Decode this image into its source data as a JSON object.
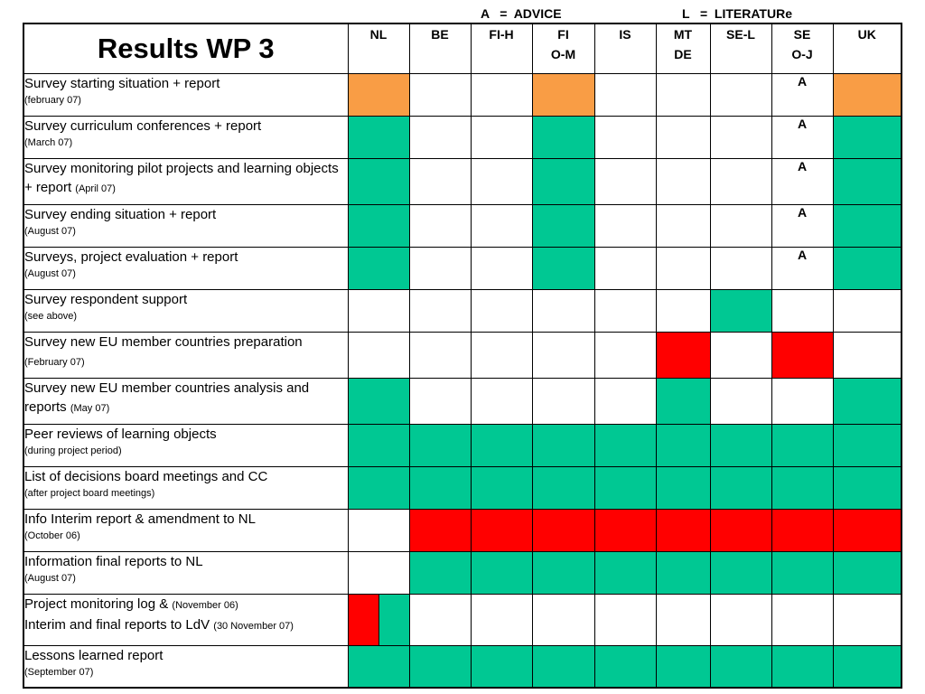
{
  "legend": {
    "advice": "A   =  ADVICE",
    "literature": "L   =  LITERATURe"
  },
  "title": "Results WP  3",
  "colors": {
    "orange": "#F99D45",
    "green": "#00C893",
    "red": "#FF0000",
    "white": "#FFFFFF"
  },
  "columns": [
    [
      "NL"
    ],
    [
      "BE"
    ],
    [
      "FI-H"
    ],
    [
      "FI",
      "O-M"
    ],
    [
      "IS"
    ],
    [
      "MT",
      "DE"
    ],
    [
      "SE-L"
    ],
    [
      "SE",
      "O-J"
    ],
    [
      "UK"
    ]
  ],
  "rows": [
    {
      "task": "Survey starting situation + report",
      "date": "(february 07)",
      "cells": [
        "orange",
        "white",
        "white",
        "orange",
        "white",
        "white",
        "white",
        {
          "color": "white",
          "text": "A"
        },
        "orange"
      ]
    },
    {
      "task": "Survey curriculum conferences + report",
      "date": "(March 07)",
      "cells": [
        "green",
        "white",
        "white",
        "green",
        "white",
        "white",
        "white",
        {
          "color": "white",
          "text": "A"
        },
        "green"
      ]
    },
    {
      "task": "Survey monitoring pilot projects and learning objects + report",
      "date": "(April 07)",
      "inline": true,
      "cells": [
        "green",
        "white",
        "white",
        "green",
        "white",
        "white",
        "white",
        {
          "color": "white",
          "text": "A"
        },
        "green"
      ]
    },
    {
      "task": "Survey ending situation + report",
      "date": "(August 07)",
      "cells": [
        "green",
        "white",
        "white",
        "green",
        "white",
        "white",
        "white",
        {
          "color": "white",
          "text": "A"
        },
        "green"
      ]
    },
    {
      "task": "Surveys, project evaluation + report",
      "date": "(August 07)",
      "cells": [
        "green",
        "white",
        "white",
        "green",
        "white",
        "white",
        "white",
        {
          "color": "white",
          "text": "A"
        },
        "green"
      ]
    },
    {
      "task": "Survey respondent support",
      "date": "(see above)",
      "cells": [
        "white",
        "white",
        "white",
        "white",
        "white",
        "white",
        "green",
        "white",
        "white"
      ]
    },
    {
      "task": "Survey new EU member countries preparation",
      "date": "(February 07)",
      "inline": true,
      "cells": [
        "white",
        "white",
        "white",
        "white",
        "white",
        "red",
        "white",
        "red",
        "white"
      ]
    },
    {
      "task": "Survey new EU member countries analysis and reports",
      "date": "(May 07)",
      "inline": true,
      "cells": [
        "green",
        "white",
        "white",
        "white",
        "white",
        "green",
        "white",
        "white",
        "green"
      ]
    },
    {
      "task": "Peer reviews of learning objects",
      "date": "(during project period)",
      "cells": [
        "green",
        "green",
        "green",
        "green",
        "green",
        "green",
        "green",
        "green",
        "green"
      ]
    },
    {
      "task": "List of decisions board meetings and CC",
      "date": "(after project board meetings)",
      "cells": [
        "green",
        "green",
        "green",
        "green",
        "green",
        "green",
        "green",
        "green",
        "green"
      ]
    },
    {
      "task": "Info Interim report & amendment to NL",
      "date": "(October 06)",
      "cells": [
        "white",
        "red",
        "red",
        "red",
        "red",
        "red",
        "red",
        "red",
        "red"
      ]
    },
    {
      "task": "Information final reports to NL",
      "date": "(August 07)",
      "cells": [
        "white",
        "green",
        "green",
        "green",
        "green",
        "green",
        "green",
        "green",
        "green"
      ]
    },
    {
      "task": "Project monitoring log &",
      "date": "(November 06)",
      "task2": "Interim and final reports to LdV",
      "date2": "(30 November 07)",
      "cells": [
        {
          "split": [
            "red",
            "green"
          ]
        },
        "white",
        "white",
        "white",
        "white",
        "white",
        "white",
        "white",
        "white"
      ]
    },
    {
      "task": "Lessons learned report",
      "date": "(September 07)",
      "cells": [
        "green",
        "green",
        "green",
        "green",
        "green",
        "green",
        "green",
        "green",
        "green"
      ]
    }
  ]
}
